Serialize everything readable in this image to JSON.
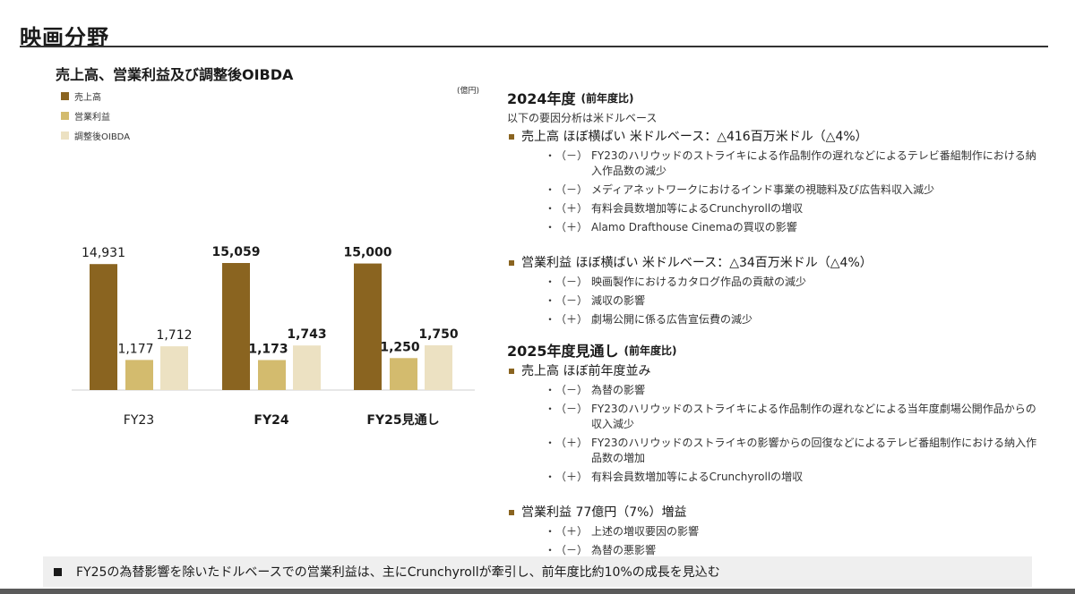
{
  "page": {
    "title": "映画分野",
    "footer_note": "FY25の為替影響を除いたドルベースでの営業利益は、主にCrunchyrollが牽引し、前年度比約10%の成長を見込む"
  },
  "chart_data": {
    "type": "bar",
    "title": "売上高、営業利益及び調整後OIBDA",
    "unit_label": "(億円)",
    "categories": [
      "FY23",
      "FY24",
      "FY25見通し"
    ],
    "category_bold": [
      false,
      true,
      true
    ],
    "series": [
      {
        "name": "売上高",
        "color": "#8a6420",
        "values": [
          14931,
          15059,
          15000
        ],
        "labels": [
          "14,931",
          "15,059",
          "15,000"
        ]
      },
      {
        "name": "営業利益",
        "color": "#d3bb6e",
        "values": [
          1177,
          1173,
          1250
        ],
        "labels": [
          "1,177",
          "1,173",
          "1,250"
        ]
      },
      {
        "name": "調整後OIBDA",
        "color": "#ece1c2",
        "values": [
          1712,
          1743,
          1750
        ],
        "labels": [
          "1,712",
          "1,743",
          "1,750"
        ]
      }
    ],
    "axis_break": true,
    "grid": false,
    "legend_position": "top-left"
  },
  "fy2024": {
    "title": "2024年度",
    "subtitle": "(前年度比)",
    "note": "以下の要因分析は米ドルベース",
    "groups": [
      {
        "head": "売上高 ほぼ横ばい 米ドルベース：△416百万米ドル（△4%）",
        "items": [
          {
            "sign": "（－）",
            "text": "FY23のハリウッドのストライキによる作品制作の遅れなどによるテレビ番組制作における納入作品数の減少"
          },
          {
            "sign": "（－）",
            "text": "メディアネットワークにおけるインド事業の視聴料及び広告料収入減少"
          },
          {
            "sign": "（＋）",
            "text": "有料会員数増加等によるCrunchyrollの増収"
          },
          {
            "sign": "（＋）",
            "text": "Alamo Drafthouse Cinemaの買収の影響"
          }
        ]
      },
      {
        "head": "営業利益 ほぼ横ばい 米ドルベース：△34百万米ドル（△4%）",
        "items": [
          {
            "sign": "（－）",
            "text": "映画製作におけるカタログ作品の貢献の減少"
          },
          {
            "sign": "（－）",
            "text": "減収の影響"
          },
          {
            "sign": "（＋）",
            "text": "劇場公開に係る広告宣伝費の減少"
          }
        ]
      }
    ]
  },
  "fy2025": {
    "title": "2025年度見通し",
    "subtitle": "(前年度比)",
    "groups": [
      {
        "head": "売上高 ほぼ前年度並み",
        "items": [
          {
            "sign": "（－）",
            "text": "為替の影響"
          },
          {
            "sign": "（－）",
            "text": "FY23のハリウッドのストライキによる作品制作の遅れなどによる当年度劇場公開作品からの収入減少"
          },
          {
            "sign": "（＋）",
            "text": "FY23のハリウッドのストライキの影響からの回復などによるテレビ番組制作における納入作品数の増加"
          },
          {
            "sign": "（＋）",
            "text": "有料会員数増加等によるCrunchyrollの増収"
          }
        ]
      },
      {
        "head": "営業利益 77億円（7%）増益",
        "items": [
          {
            "sign": "（＋）",
            "text": "上述の増収要因の影響"
          },
          {
            "sign": "（－）",
            "text": "為替の悪影響"
          }
        ]
      }
    ]
  }
}
